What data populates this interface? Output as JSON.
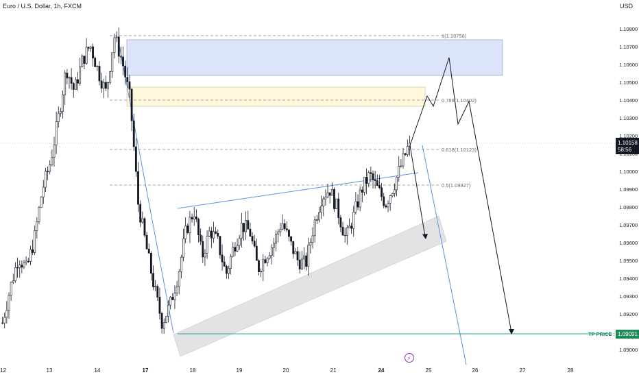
{
  "header": {
    "symbol_title": "Euro / U.S. Dollar, 1h, FXCM",
    "currency": "USD"
  },
  "price_scale": {
    "labels": [
      "1.10800",
      "1.10700",
      "1.10600",
      "1.10500",
      "1.10400",
      "1.10300",
      "1.10200",
      "1.10100",
      "1.10000",
      "1.09900",
      "1.09800",
      "1.09700",
      "1.09600",
      "1.09500",
      "1.09400",
      "1.09300",
      "1.09200",
      "1.09100",
      "1.09000"
    ],
    "current_price": "1.10158",
    "countdown": "58:56",
    "tp_price": "1.09091"
  },
  "time_axis": {
    "labels": [
      "12",
      "13",
      "14",
      "17",
      "18",
      "19",
      "20",
      "21",
      "24",
      "25",
      "26",
      "27",
      "28"
    ],
    "bold": [
      "17",
      "24"
    ]
  },
  "annotations": {
    "fib_1": "1(1.10758)",
    "fib_0786": "0.786(1.10402)",
    "fib_0618": "0.618(1.10123)",
    "fib_05": "0.5(1.09927)",
    "tp_label": "TP PRICE :"
  },
  "colors": {
    "up_candle": "#ffffff",
    "down_candle": "#131722",
    "supply_zone": "#dbe4fb",
    "fib_zone": "#fff8dc",
    "channel_zone": "#e3e3e5",
    "trendline": "#5b8fe6",
    "tp_line": "#26a69a",
    "tp_badge": "#1e8a5a",
    "current_badge": "#131722",
    "event_icon": "#9c27b0"
  },
  "chart_data": {
    "type": "candlestick",
    "title": "Euro / U.S. Dollar, 1h, FXCM",
    "y_unit": "USD",
    "ylim": [
      1.0897,
      1.1085
    ],
    "x_ticks": [
      "12",
      "13",
      "14",
      "17",
      "18",
      "19",
      "20",
      "21",
      "24",
      "25",
      "26",
      "27",
      "28"
    ],
    "close_path": [
      1.0915,
      1.0935,
      1.0952,
      1.0945,
      1.0962,
      1.099,
      1.1005,
      1.103,
      1.1058,
      1.1045,
      1.1062,
      1.1071,
      1.1056,
      1.1044,
      1.1076,
      1.1062,
      1.104,
      1.0982,
      1.0958,
      1.0935,
      1.0915,
      1.0925,
      1.0942,
      1.0967,
      1.0978,
      1.0952,
      1.0967,
      1.096,
      1.0942,
      1.0958,
      1.097,
      1.0966,
      1.0945,
      1.0953,
      1.096,
      1.0972,
      1.096,
      1.095,
      1.0948,
      1.097,
      1.0986,
      1.099,
      1.0978,
      1.0962,
      1.0975,
      1.099,
      1.0998,
      1.099,
      1.0982,
      1.0992,
      1.1004,
      1.1016
    ],
    "current_price": 1.10158,
    "tp_price": 1.09091,
    "fib_levels": [
      {
        "ratio": "1",
        "price": 1.10758
      },
      {
        "ratio": "0.786",
        "price": 1.10402
      },
      {
        "ratio": "0.618",
        "price": 1.10123
      },
      {
        "ratio": "0.5",
        "price": 1.09927
      }
    ],
    "zones": [
      {
        "name": "supply",
        "from": 1.1054,
        "to": 1.1074
      },
      {
        "name": "fib",
        "from": 1.1037,
        "to": 1.1047
      }
    ],
    "projection": [
      1.10158,
      1.104,
      1.1033,
      1.1063,
      1.1026,
      1.104,
      1.09091
    ],
    "grid": false
  }
}
